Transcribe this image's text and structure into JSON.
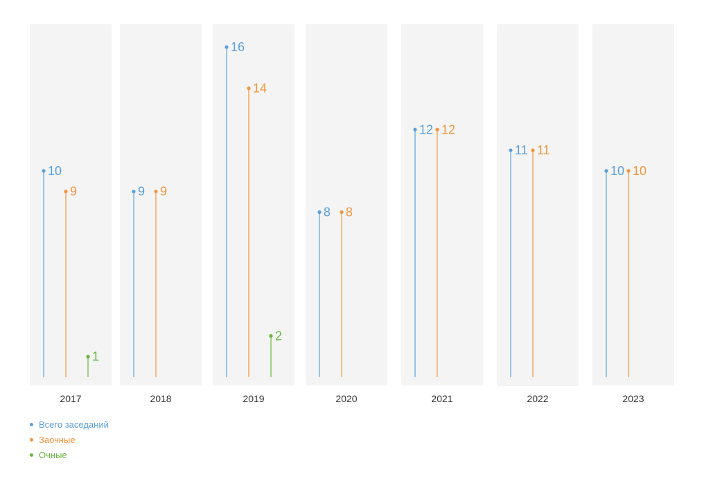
{
  "chart_data": {
    "type": "lollipop",
    "categories": [
      "2017",
      "2018",
      "2019",
      "2020",
      "2021",
      "2022",
      "2023"
    ],
    "series": [
      {
        "name": "Всего заседаний",
        "color": "#5aa0dc",
        "values": [
          10,
          9,
          16,
          8,
          12,
          11,
          10
        ]
      },
      {
        "name": "Заочные",
        "color": "#f0953c",
        "values": [
          9,
          9,
          14,
          8,
          12,
          11,
          10
        ]
      },
      {
        "name": "Очные",
        "color": "#66b83a",
        "values": [
          1,
          null,
          2,
          null,
          null,
          null,
          null
        ]
      }
    ],
    "ylim": [
      0,
      16
    ],
    "legend_position": "bottom-left"
  }
}
